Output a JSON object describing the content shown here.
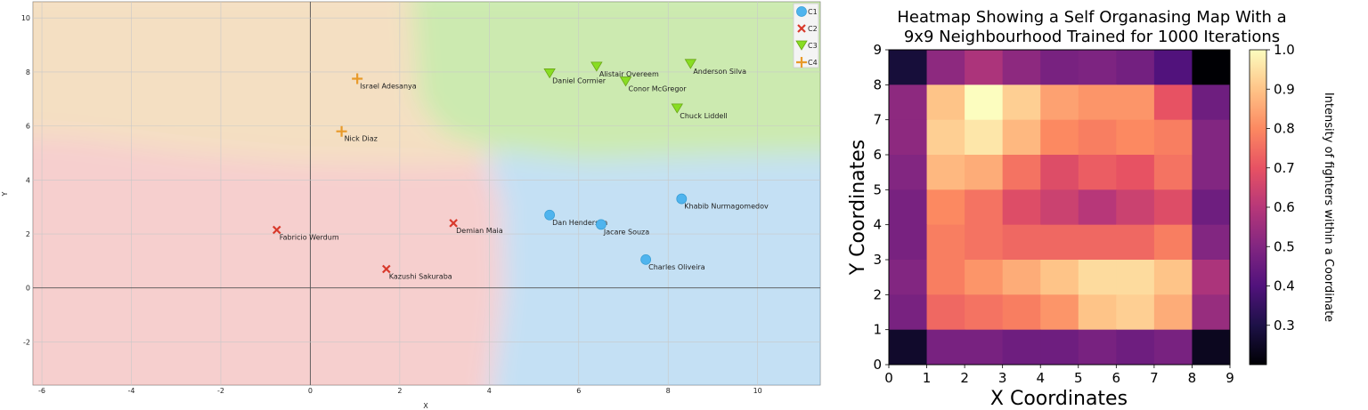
{
  "chart_data": [
    {
      "type": "scatter",
      "title": "",
      "xlabel": "X",
      "ylabel": "Y",
      "xlim": [
        -6.2,
        11.4
      ],
      "ylim": [
        -3.6,
        10.6
      ],
      "xticks": [
        "-6",
        "-4",
        "-2",
        "0",
        "2",
        "4",
        "6",
        "8",
        "10"
      ],
      "yticks": [
        "-2",
        "0",
        "2",
        "4",
        "6",
        "8",
        "10"
      ],
      "grid": true,
      "legend_position": "top-right",
      "series": [
        {
          "name": "C1",
          "marker": "circle",
          "color": "#4fb4ee",
          "points": [
            {
              "label": "Dan Henderson",
              "x": 5.35,
              "y": 2.7
            },
            {
              "label": "Jacare Souza",
              "x": 6.5,
              "y": 2.35
            },
            {
              "label": "Khabib Nurmagomedov",
              "x": 8.3,
              "y": 3.3
            },
            {
              "label": "Charles Oliveira",
              "x": 7.5,
              "y": 1.05
            }
          ]
        },
        {
          "name": "C2",
          "marker": "x",
          "color": "#d8392b",
          "points": [
            {
              "label": "Fabricio Werdum",
              "x": -0.75,
              "y": 2.15
            },
            {
              "label": "Demian Maia",
              "x": 3.2,
              "y": 2.4
            },
            {
              "label": "Kazushi Sakuraba",
              "x": 1.7,
              "y": 0.7
            }
          ]
        },
        {
          "name": "C3",
          "marker": "triangle-down",
          "color": "#88dd22",
          "points": [
            {
              "label": "Daniel Cormier",
              "x": 5.35,
              "y": 7.95
            },
            {
              "label": "Alistair Overeem",
              "x": 6.4,
              "y": 8.2
            },
            {
              "label": "Conor McGregor",
              "x": 7.05,
              "y": 7.65
            },
            {
              "label": "Anderson Silva",
              "x": 8.5,
              "y": 8.3
            },
            {
              "label": "Chuck Liddell",
              "x": 8.2,
              "y": 6.65
            }
          ]
        },
        {
          "name": "C4",
          "marker": "plus",
          "color": "#e89a2a",
          "points": [
            {
              "label": "Israel Adesanya",
              "x": 1.05,
              "y": 7.75
            },
            {
              "label": "Nick Diaz",
              "x": 0.7,
              "y": 5.8
            }
          ]
        }
      ]
    },
    {
      "type": "heatmap",
      "title": "Heatmap Showing a Self Organasing Map With a 9x9 Neighbourhood Trained for 1000 Iterations",
      "xlabel": "X Coordinates",
      "ylabel": "Y Coordinates",
      "xlim": [
        0,
        9
      ],
      "ylim": [
        0,
        9
      ],
      "xticks": [
        "0",
        "1",
        "2",
        "3",
        "4",
        "5",
        "6",
        "7",
        "8",
        "9"
      ],
      "yticks": [
        "0",
        "1",
        "2",
        "3",
        "4",
        "5",
        "6",
        "7",
        "8",
        "9"
      ],
      "colormap": "magma",
      "colorbar": {
        "label": "Intensity of fighters within a Coordinate",
        "range": [
          0.2,
          1.0
        ],
        "ticks": [
          "0.3",
          "0.4",
          "0.5",
          "0.6",
          "0.7",
          "0.8",
          "0.9",
          "1.0"
        ]
      },
      "rows_top_to_bottom": [
        [
          0.28,
          0.52,
          0.58,
          0.52,
          0.48,
          0.49,
          0.47,
          0.4,
          0.2
        ],
        [
          0.52,
          0.9,
          1.0,
          0.92,
          0.84,
          0.82,
          0.82,
          0.7,
          0.46
        ],
        [
          0.52,
          0.92,
          0.96,
          0.88,
          0.8,
          0.78,
          0.8,
          0.78,
          0.5
        ],
        [
          0.5,
          0.88,
          0.86,
          0.76,
          0.68,
          0.72,
          0.7,
          0.76,
          0.5
        ],
        [
          0.48,
          0.8,
          0.76,
          0.68,
          0.64,
          0.6,
          0.64,
          0.68,
          0.46
        ],
        [
          0.48,
          0.78,
          0.76,
          0.74,
          0.74,
          0.74,
          0.74,
          0.78,
          0.5
        ],
        [
          0.5,
          0.78,
          0.82,
          0.86,
          0.9,
          0.94,
          0.94,
          0.9,
          0.58
        ],
        [
          0.48,
          0.74,
          0.76,
          0.78,
          0.82,
          0.9,
          0.92,
          0.86,
          0.54
        ],
        [
          0.26,
          0.48,
          0.48,
          0.46,
          0.46,
          0.48,
          0.46,
          0.48,
          0.24
        ]
      ]
    }
  ]
}
